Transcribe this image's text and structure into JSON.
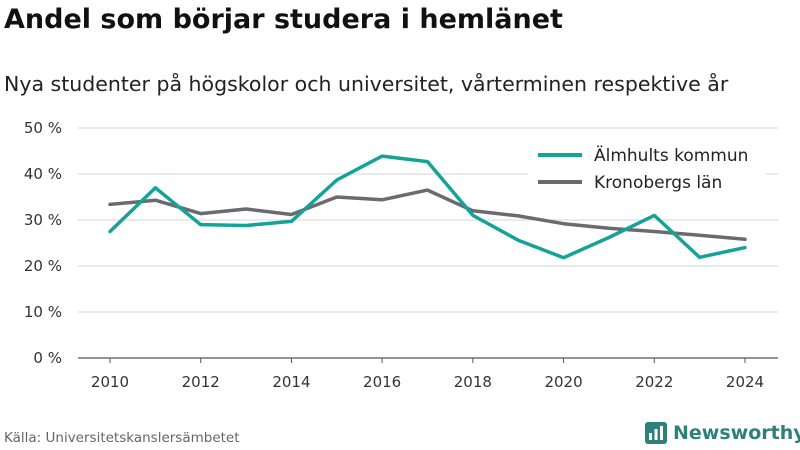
{
  "title": "Andel som börjar studera i hemlänet",
  "subtitle": "Nya studenter på högskolor och universitet, vårterminen respektive år",
  "source": "Källa: Universitetskanslersämbetet",
  "brand": {
    "name": "Newsworthy",
    "icon": "newsworthy-logo-icon",
    "color": "#2f7f7a"
  },
  "chart_data": {
    "type": "line",
    "x": [
      2010,
      2011,
      2012,
      2013,
      2014,
      2015,
      2016,
      2017,
      2018,
      2019,
      2020,
      2021,
      2022,
      2023,
      2024
    ],
    "series": [
      {
        "name": "Älmhults kommun",
        "color": "#13a398",
        "values": [
          27.5,
          37,
          29,
          28.8,
          29.7,
          38.7,
          43.9,
          42.7,
          31,
          25.6,
          21.8,
          26.2,
          31,
          21.9,
          24
        ]
      },
      {
        "name": "Kronobergs län",
        "color": "#6b6a6e",
        "values": [
          33.4,
          34.3,
          31.4,
          32.4,
          31.2,
          35,
          34.4,
          36.5,
          32,
          30.9,
          29.2,
          28.2,
          27.5,
          26.7,
          25.8
        ]
      }
    ],
    "ylim": [
      0,
      50
    ],
    "yticks": [
      0,
      10,
      20,
      30,
      40,
      50
    ],
    "ytick_labels": [
      "0 %",
      "10 %",
      "20 %",
      "30 %",
      "40 %",
      "50 %"
    ],
    "xticks": [
      2010,
      2012,
      2014,
      2016,
      2018,
      2020,
      2022,
      2024
    ],
    "xtick_labels": [
      "2010",
      "2012",
      "2014",
      "2016",
      "2018",
      "2020",
      "2022",
      "2024"
    ],
    "xlabel": "",
    "ylabel": "",
    "grid": "horizontal",
    "legend_position": "top-right"
  }
}
